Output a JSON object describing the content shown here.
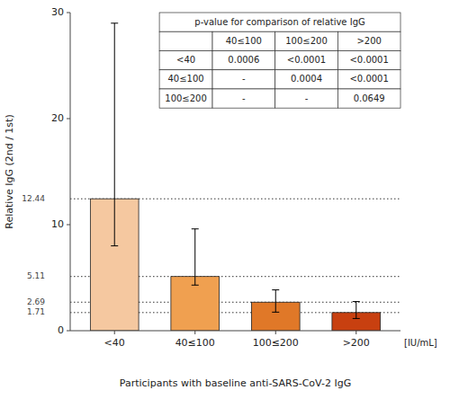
{
  "chart_data": {
    "type": "bar",
    "categories": [
      "<40",
      "40≤100",
      "100≤200",
      ">200"
    ],
    "values": [
      12.44,
      5.11,
      2.69,
      1.71
    ],
    "colors": [
      "#F5C8A0",
      "#F0A050",
      "#E07828",
      "#C84010"
    ],
    "error_lower": [
      8.0,
      4.3,
      1.75,
      1.15
    ],
    "error_upper": [
      29.0,
      9.6,
      3.85,
      2.75
    ],
    "reference_lines": [
      12.44,
      5.11,
      2.69,
      1.71
    ],
    "y_label": "Relative IgG (2nd / 1st)",
    "x_label": "Participants with baseline anti-SARS-CoV-2 IgG",
    "annotation": "[IU/mL]",
    "ylim": [
      0,
      30
    ],
    "yticks": [
      0,
      10,
      20,
      30
    ],
    "grid": false,
    "table": {
      "title": "p-value for comparison of relative IgG",
      "col_labels": [
        "40≤100",
        "100≤200",
        ">200"
      ],
      "row_labels": [
        "<40",
        "40≤100",
        "100≤200"
      ],
      "cells": [
        [
          "0.0006",
          "<0.0001",
          "<0.0001"
        ],
        [
          "-",
          "0.0004",
          "<0.0001"
        ],
        [
          "-",
          "-",
          "0.0649"
        ]
      ]
    }
  }
}
